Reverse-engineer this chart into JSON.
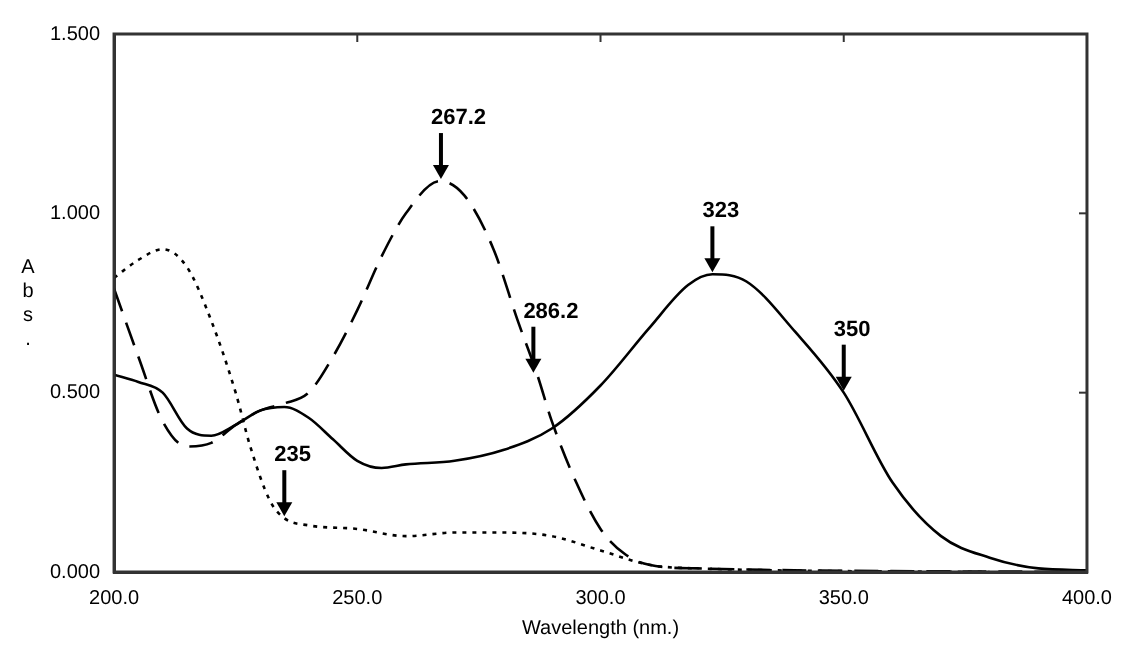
{
  "chart_data": {
    "type": "line",
    "xlabel": "Wavelength (nm.)",
    "ylabel": "Abs.",
    "xlim": [
      200,
      400
    ],
    "ylim": [
      0,
      1.5
    ],
    "xticks": [
      {
        "value": 200,
        "label": "200.0"
      },
      {
        "value": 250,
        "label": "250.0"
      },
      {
        "value": 300,
        "label": "300.0"
      },
      {
        "value": 350,
        "label": "350.0"
      },
      {
        "value": 400,
        "label": "400.0"
      }
    ],
    "yticks": [
      {
        "value": 0,
        "label": "0.000"
      },
      {
        "value": 0.5,
        "label": "0.500"
      },
      {
        "value": 1,
        "label": "1.000"
      },
      {
        "value": 1.5,
        "label": "1.500"
      }
    ],
    "grid": false,
    "legend": false,
    "marker": "none",
    "series": [
      {
        "color": "#000000",
        "line_style": "solid",
        "x": [
          200,
          205,
          210,
          215,
          220,
          225,
          230,
          235,
          240,
          245,
          250,
          255,
          260,
          270,
          280,
          290,
          300,
          310,
          318,
          323,
          330,
          340,
          350,
          360,
          370,
          380,
          390,
          400
        ],
        "values": [
          0.55,
          0.53,
          0.5,
          0.4,
          0.38,
          0.41,
          0.45,
          0.46,
          0.43,
          0.37,
          0.31,
          0.29,
          0.3,
          0.31,
          0.34,
          0.4,
          0.52,
          0.68,
          0.8,
          0.83,
          0.81,
          0.67,
          0.5,
          0.25,
          0.1,
          0.04,
          0.01,
          0.005
        ]
      },
      {
        "color": "#000000",
        "line_style": "dashed",
        "x": [
          200,
          205,
          210,
          215,
          220,
          225,
          230,
          235,
          240,
          245,
          250,
          255,
          260,
          267,
          272,
          278,
          283,
          287,
          290,
          295,
          300,
          305,
          310,
          320,
          400
        ],
        "values": [
          0.79,
          0.6,
          0.42,
          0.35,
          0.36,
          0.41,
          0.45,
          0.47,
          0.5,
          0.6,
          0.73,
          0.88,
          1.0,
          1.09,
          1.05,
          0.9,
          0.7,
          0.55,
          0.42,
          0.25,
          0.12,
          0.05,
          0.02,
          0.01,
          0
        ]
      },
      {
        "color": "#000000",
        "line_style": "dotted",
        "x": [
          200,
          205,
          210,
          215,
          220,
          225,
          228,
          232,
          235,
          240,
          250,
          260,
          270,
          280,
          290,
          300,
          310,
          320,
          380
        ],
        "values": [
          0.82,
          0.87,
          0.9,
          0.85,
          0.7,
          0.5,
          0.35,
          0.2,
          0.15,
          0.13,
          0.12,
          0.1,
          0.11,
          0.11,
          0.1,
          0.06,
          0.02,
          0.01,
          0
        ]
      }
    ],
    "annotations": [
      {
        "text": "267.2",
        "x": 267.2,
        "y": 1.09
      },
      {
        "text": "286.2",
        "x": 286.2,
        "y": 0.55
      },
      {
        "text": "323",
        "x": 323,
        "y": 0.83
      },
      {
        "text": "350",
        "x": 350,
        "y": 0.5
      },
      {
        "text": "235",
        "x": 235,
        "y": 0.15
      }
    ]
  }
}
